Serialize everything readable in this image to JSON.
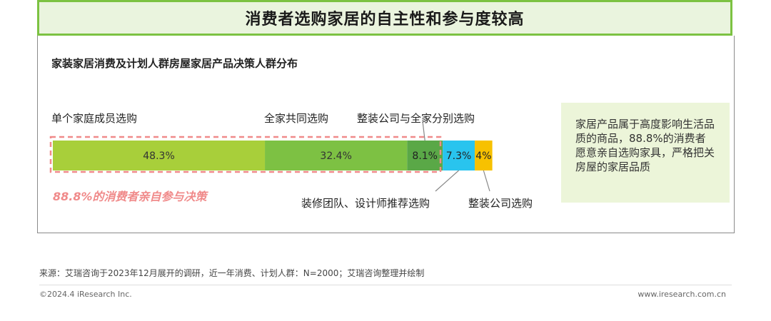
{
  "header": {
    "title": "消费者选购家居的自主性和参与度较高"
  },
  "chart_data": {
    "type": "bar",
    "title": "家装家居消费及计划人群房屋家居产品决策人群分布",
    "categories": [
      "单个家庭成员选购",
      "全家共同选购",
      "整装公司与全家分别选购",
      "装修团队、设计师推荐选购",
      "整装公司选购"
    ],
    "values": [
      48.3,
      32.4,
      8.1,
      7.3,
      4
    ],
    "value_labels": [
      "48.3%",
      "32.4%",
      "8.1%",
      "7.3%",
      "4%"
    ],
    "colors": [
      "#a8cf3a",
      "#7dc143",
      "#5aa847",
      "#29c4ee",
      "#f7c100"
    ],
    "stacked": true,
    "highlight_label": "88.8%的消费者亲自参与决策"
  },
  "note": {
    "text": "家居产品属于高度影响生活品质的商品，88.8%的消费者愿意亲自选购家具，严格把关房屋的家居品质"
  },
  "footer": {
    "source": "来源：艾瑞咨询于2023年12月展开的调研，近一年消费、计划人群：N=2000；艾瑞咨询整理并绘制",
    "copyright": "©2024.4 iResearch Inc.",
    "website": "www.iresearch.com.cn"
  }
}
